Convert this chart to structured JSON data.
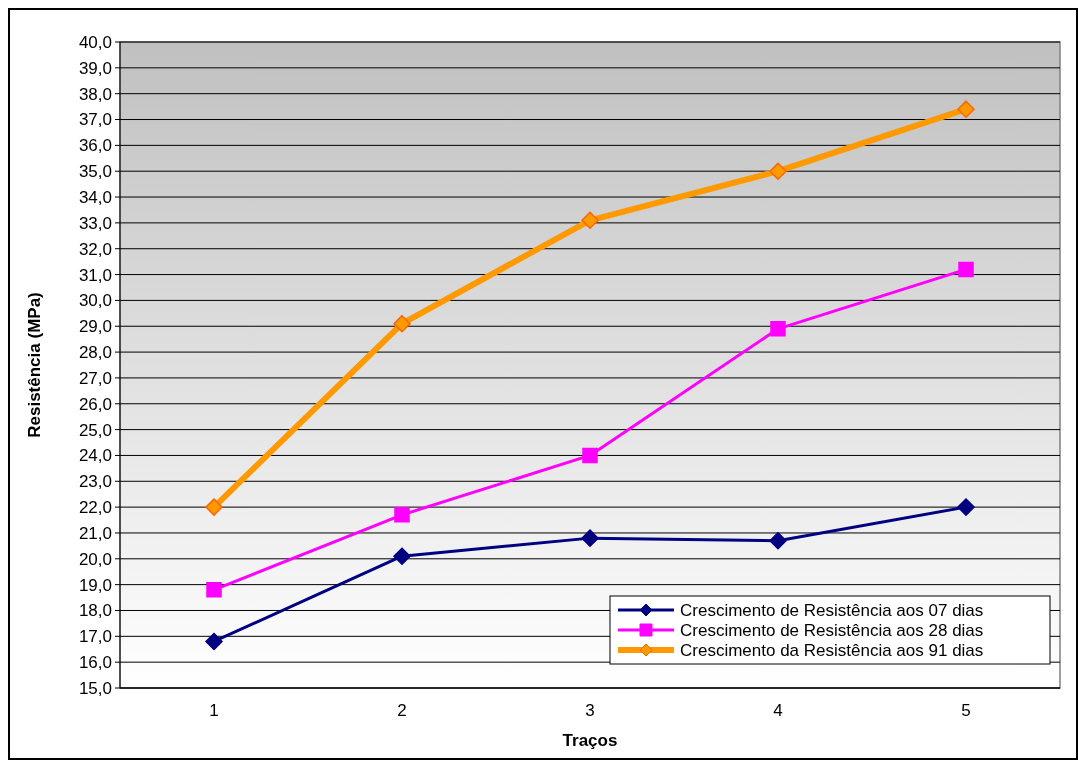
{
  "chart_data": {
    "type": "line",
    "xlabel": "Traços",
    "ylabel": "Resistência (MPa)",
    "categories": [
      "1",
      "2",
      "3",
      "4",
      "5"
    ],
    "series": [
      {
        "name": "Crescimento de Resistência aos 07 dias",
        "color": "#000080",
        "marker": "diamond",
        "values": [
          16.8,
          20.1,
          20.8,
          20.7,
          22.0
        ]
      },
      {
        "name": "Crescimento de Resistência aos 28 dias",
        "color": "#ff00ff",
        "marker": "square",
        "values": [
          18.8,
          21.7,
          24.0,
          28.9,
          31.2
        ]
      },
      {
        "name": "Crescimento da Resistência aos 91 dias",
        "color": "#ff9900",
        "marker": "diamond",
        "values": [
          22.0,
          29.1,
          33.1,
          35.0,
          37.4
        ]
      }
    ],
    "ylim": [
      15,
      40
    ],
    "yticks": [
      {
        "value": 15,
        "label": "15,0"
      },
      {
        "value": 16,
        "label": "16,0"
      },
      {
        "value": 17,
        "label": "17,0"
      },
      {
        "value": 18,
        "label": "18,0"
      },
      {
        "value": 19,
        "label": "19,0"
      },
      {
        "value": 20,
        "label": "20,0"
      },
      {
        "value": 21,
        "label": "21,0"
      },
      {
        "value": 22,
        "label": "22,0"
      },
      {
        "value": 23,
        "label": "23,0"
      },
      {
        "value": 24,
        "label": "24,0"
      },
      {
        "value": 25,
        "label": "25,0"
      },
      {
        "value": 26,
        "label": "26,0"
      },
      {
        "value": 27,
        "label": "27,0"
      },
      {
        "value": 28,
        "label": "28,0"
      },
      {
        "value": 29,
        "label": "29,0"
      },
      {
        "value": 30,
        "label": "30,0"
      },
      {
        "value": 31,
        "label": "31,0"
      },
      {
        "value": 32,
        "label": "32,0"
      },
      {
        "value": 33,
        "label": "33,0"
      },
      {
        "value": 34,
        "label": "34,0"
      },
      {
        "value": 35,
        "label": "35,0"
      },
      {
        "value": 36,
        "label": "36,0"
      },
      {
        "value": 37,
        "label": "37,0"
      },
      {
        "value": 38,
        "label": "38,0"
      },
      {
        "value": 39,
        "label": "39,0"
      },
      {
        "value": 40,
        "label": "40,0"
      }
    ],
    "grid": "y",
    "legend": "bottom right",
    "line_style": "solid"
  }
}
